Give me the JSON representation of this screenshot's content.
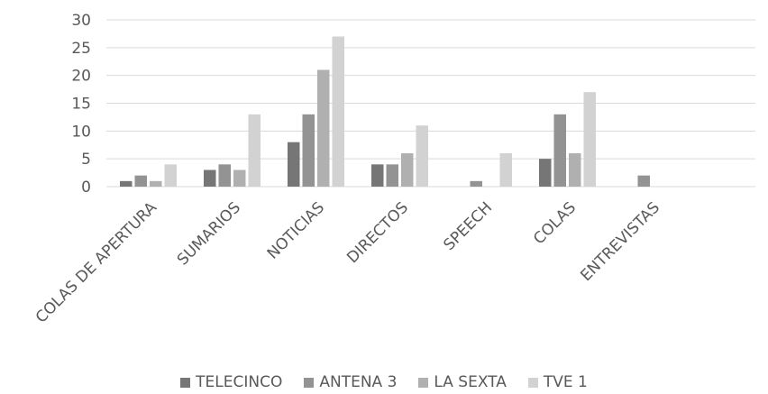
{
  "chart_data": {
    "type": "bar",
    "categories": [
      "COLAS DE APERTURA",
      "SUMARIOS",
      "NOTICIAS",
      "DIRECTOS",
      "SPEECH",
      "COLAS",
      "ENTREVISTAS"
    ],
    "series": [
      {
        "name": "TELECINCO",
        "color": "#767676",
        "values": [
          1,
          3,
          8,
          4,
          0,
          5,
          0
        ]
      },
      {
        "name": "ANTENA 3",
        "color": "#939393",
        "values": [
          2,
          4,
          13,
          4,
          1,
          13,
          2
        ]
      },
      {
        "name": "LA SEXTA",
        "color": "#b0b0b0",
        "values": [
          1,
          3,
          21,
          6,
          0,
          6,
          0
        ]
      },
      {
        "name": "TVE 1",
        "color": "#d2d2d2",
        "values": [
          4,
          13,
          27,
          11,
          6,
          17,
          0
        ]
      }
    ],
    "y_ticks": [
      "0",
      "5",
      "10",
      "15",
      "20",
      "25",
      "30"
    ],
    "ylim": [
      0,
      30
    ],
    "grid": true,
    "legend_position": "bottom",
    "title": "",
    "xlabel": "",
    "ylabel": ""
  }
}
